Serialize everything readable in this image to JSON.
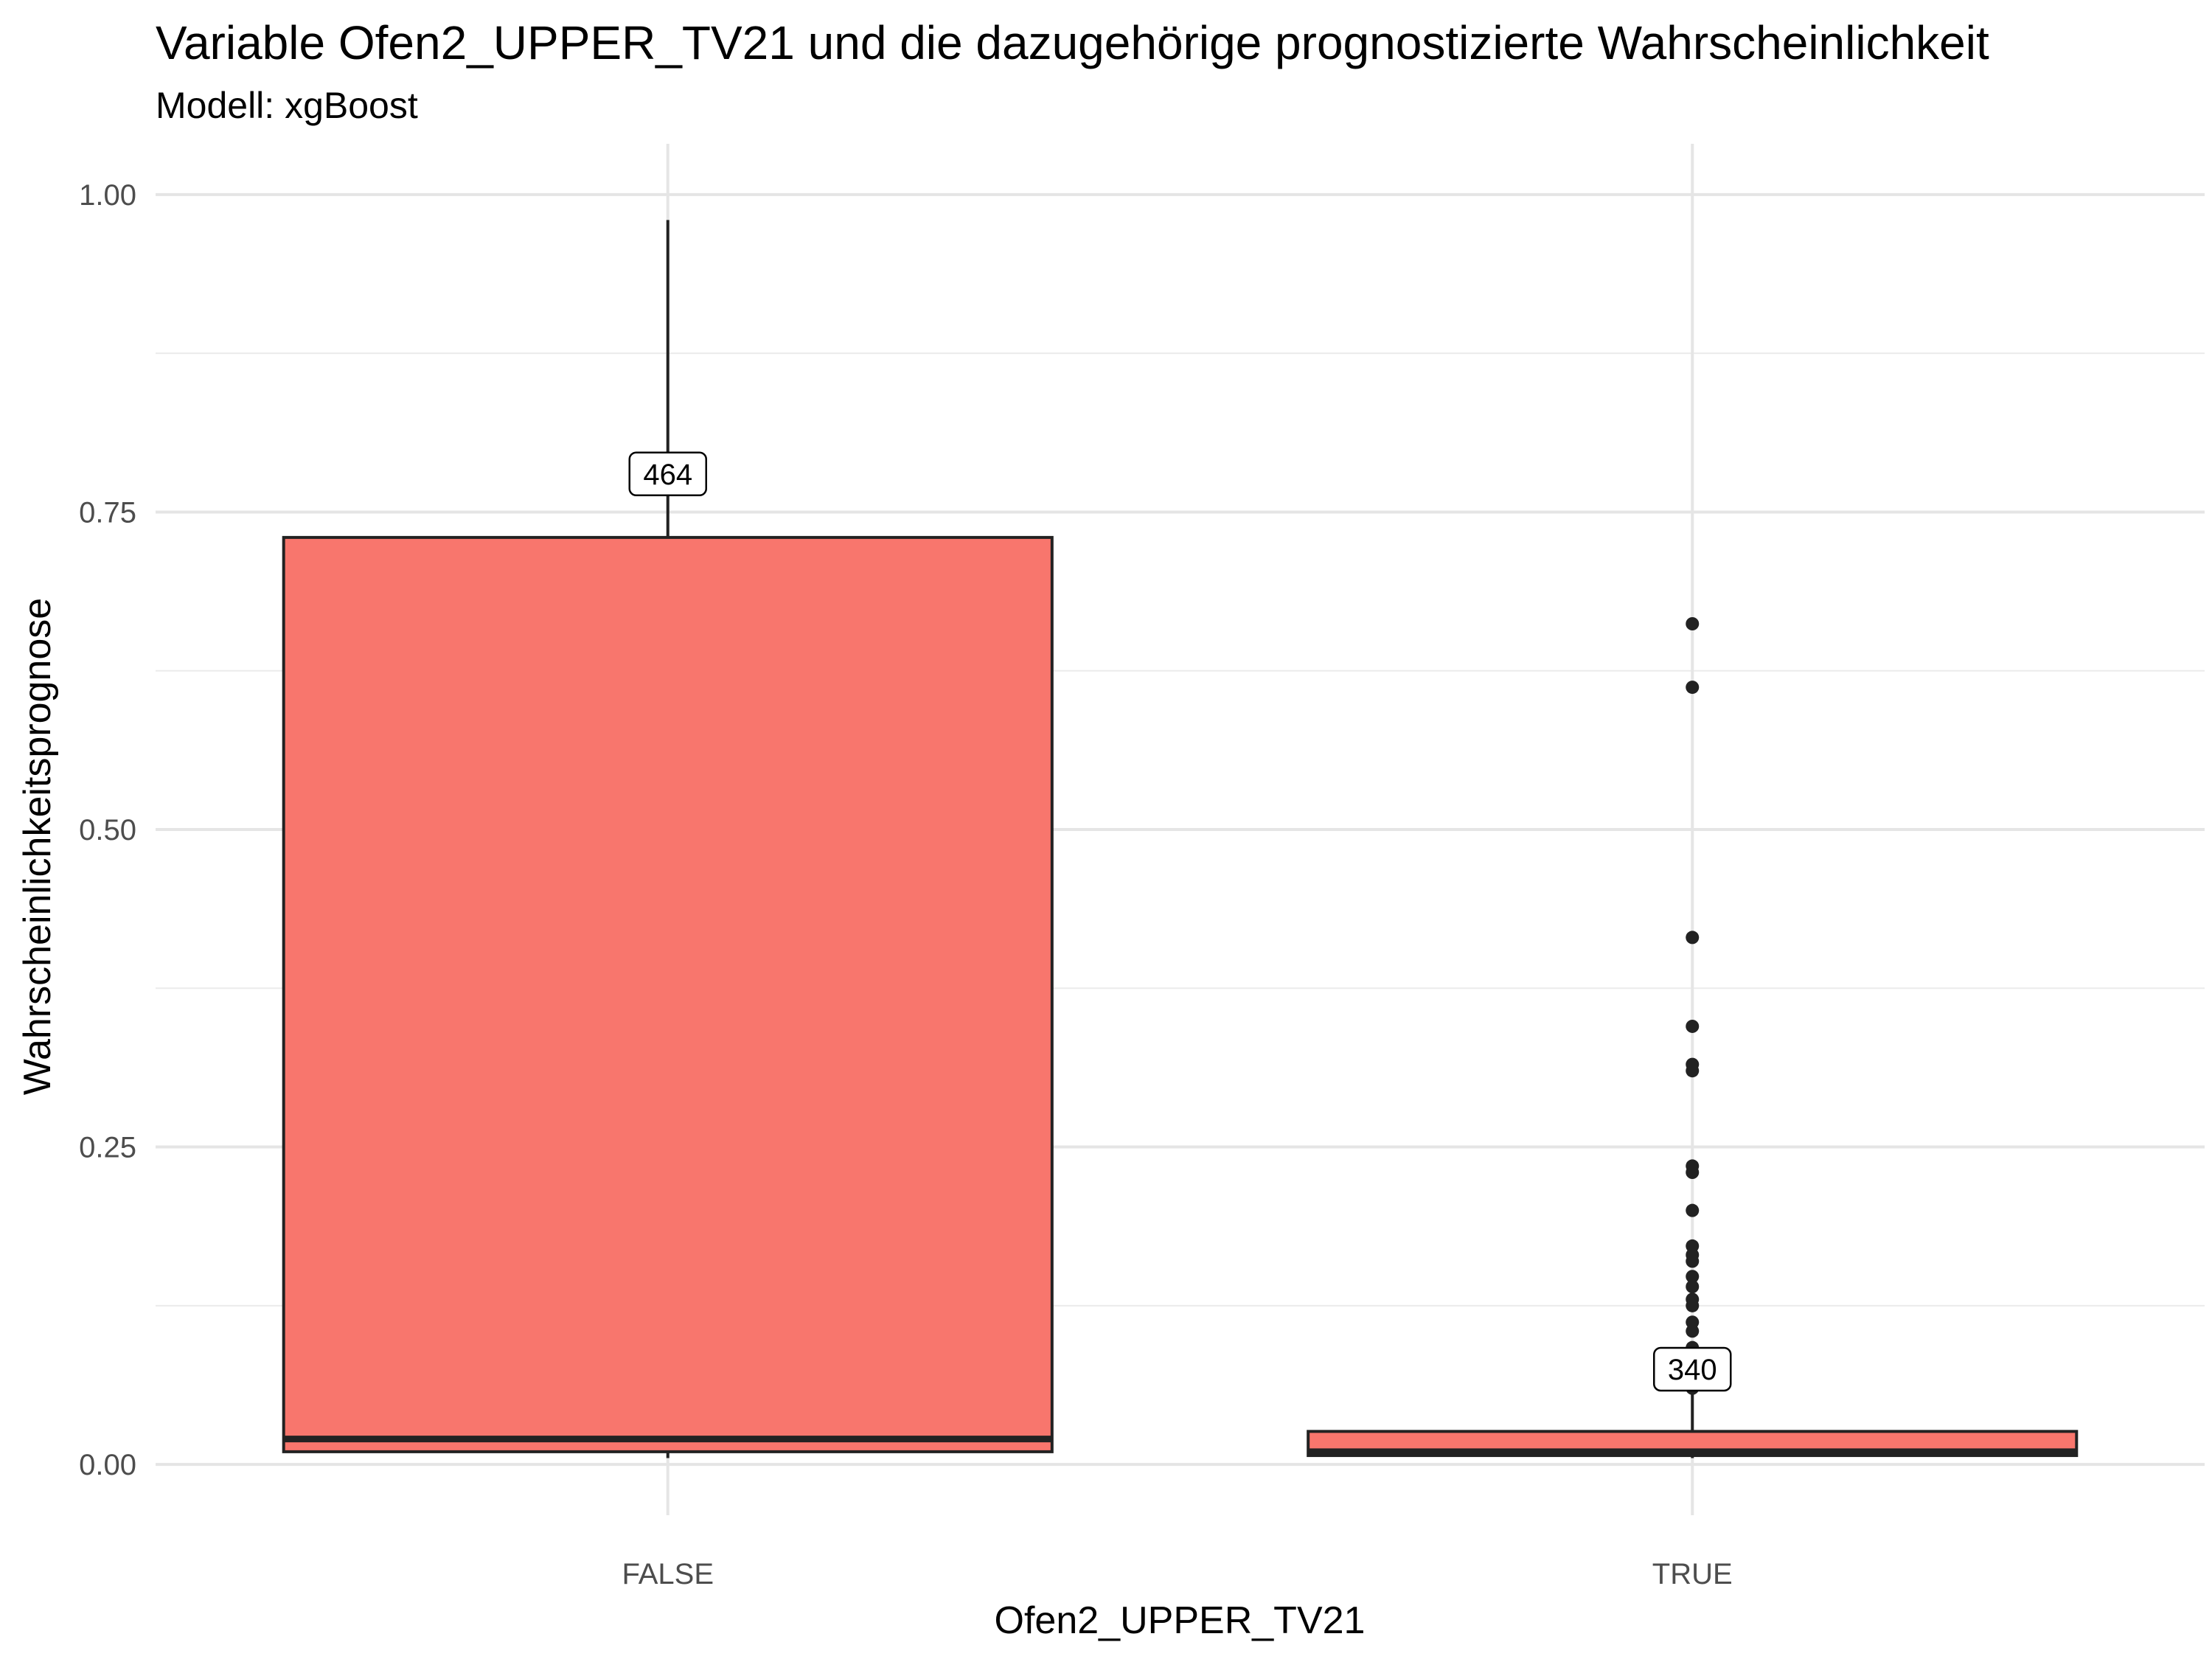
{
  "chart_data": {
    "type": "boxplot",
    "title": "Variable Ofen2_UPPER_TV21 und die dazugehörige prognostizierte Wahrscheinlichkeit",
    "subtitle": "Modell: xgBoost",
    "xlabel": "Ofen2_UPPER_TV21",
    "ylabel": "Wahrscheinlichkeitsprognose",
    "ylim": [
      -0.04,
      1.04
    ],
    "y_ticks": [
      0.0,
      0.25,
      0.5,
      0.75,
      1.0
    ],
    "y_tick_labels": [
      "0.00",
      "0.25",
      "0.50",
      "0.75",
      "1.00"
    ],
    "categories": [
      "FALSE",
      "TRUE"
    ],
    "fill_color": "#F8766D",
    "grid": true,
    "boxes": [
      {
        "category": "FALSE",
        "min": 0.005,
        "q1": 0.01,
        "median": 0.02,
        "q3": 0.73,
        "max": 0.98,
        "count_label": "464",
        "label_y": 0.78,
        "outliers": []
      },
      {
        "category": "TRUE",
        "min": 0.005,
        "q1": 0.007,
        "median": 0.01,
        "q3": 0.026,
        "max": 0.055,
        "count_label": "340",
        "label_y": 0.075,
        "outliers": [
          0.662,
          0.612,
          0.415,
          0.345,
          0.315,
          0.31,
          0.235,
          0.23,
          0.2,
          0.172,
          0.165,
          0.16,
          0.148,
          0.14,
          0.13,
          0.125,
          0.112,
          0.105,
          0.092,
          0.085,
          0.06
        ]
      }
    ]
  }
}
